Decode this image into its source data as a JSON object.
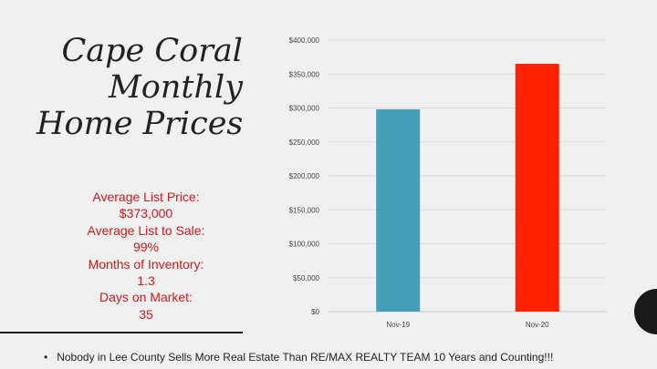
{
  "title": {
    "line1": "Cape Coral",
    "line2": "Monthly",
    "line3": "Home Prices"
  },
  "stats": {
    "items": [
      "Average List Price:",
      "$373,000",
      "Average List to Sale:",
      "99%",
      "Months of Inventory:",
      "1.3",
      "Days on Market:",
      "35"
    ]
  },
  "footer": {
    "bullet": "•",
    "text": "Nobody in Lee County Sells More Real Estate Than RE/MAX REALTY  TEAM  10 Years and Counting!!!"
  },
  "chart_data": {
    "type": "bar",
    "categories": [
      "Nov-19",
      "Nov-20"
    ],
    "values": [
      298000,
      365000
    ],
    "bar_colors": [
      "#44a0b8",
      "#ff2200"
    ],
    "ylim": [
      0,
      400000
    ],
    "yticks": [
      0,
      50000,
      100000,
      150000,
      200000,
      250000,
      300000,
      350000,
      400000
    ],
    "ytick_labels": [
      "$0",
      "$50,000",
      "$100,000",
      "$150,000",
      "$200,000",
      "$250,000",
      "$300,000",
      "$350,000",
      "$400,000"
    ],
    "grid": true,
    "legend": "none"
  }
}
